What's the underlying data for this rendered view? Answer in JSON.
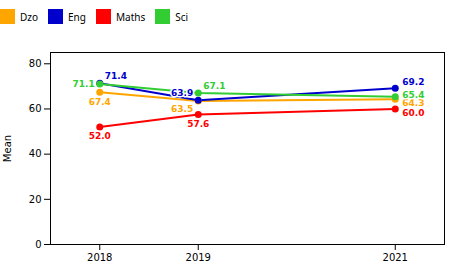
{
  "chart_data": {
    "type": "line",
    "x": [
      2018,
      2019,
      2021
    ],
    "xlim": [
      2017.5,
      2021.5
    ],
    "xticks": [
      2018,
      2019,
      2021
    ],
    "ylabel": "Mean",
    "ylim": [
      0,
      85
    ],
    "yticks": [
      0,
      20,
      40,
      60,
      80
    ],
    "grid": false,
    "data_labels": true,
    "series": [
      {
        "name": "Dzo",
        "color": "#FFA500",
        "marker": "circle",
        "values": [
          67.4,
          63.5,
          64.3
        ]
      },
      {
        "name": "Eng",
        "color": "#0000CD",
        "marker": "circle",
        "values": [
          71.4,
          63.9,
          69.2
        ]
      },
      {
        "name": "Maths",
        "color": "#FF0000",
        "marker": "circle",
        "values": [
          52.0,
          57.6,
          60.0
        ],
        "value_labels": [
          "52.0",
          "57.6",
          "60.0"
        ]
      },
      {
        "name": "Sci",
        "color": "#32CD32",
        "marker": "circle",
        "values": [
          71.1,
          67.1,
          65.4
        ]
      }
    ]
  }
}
